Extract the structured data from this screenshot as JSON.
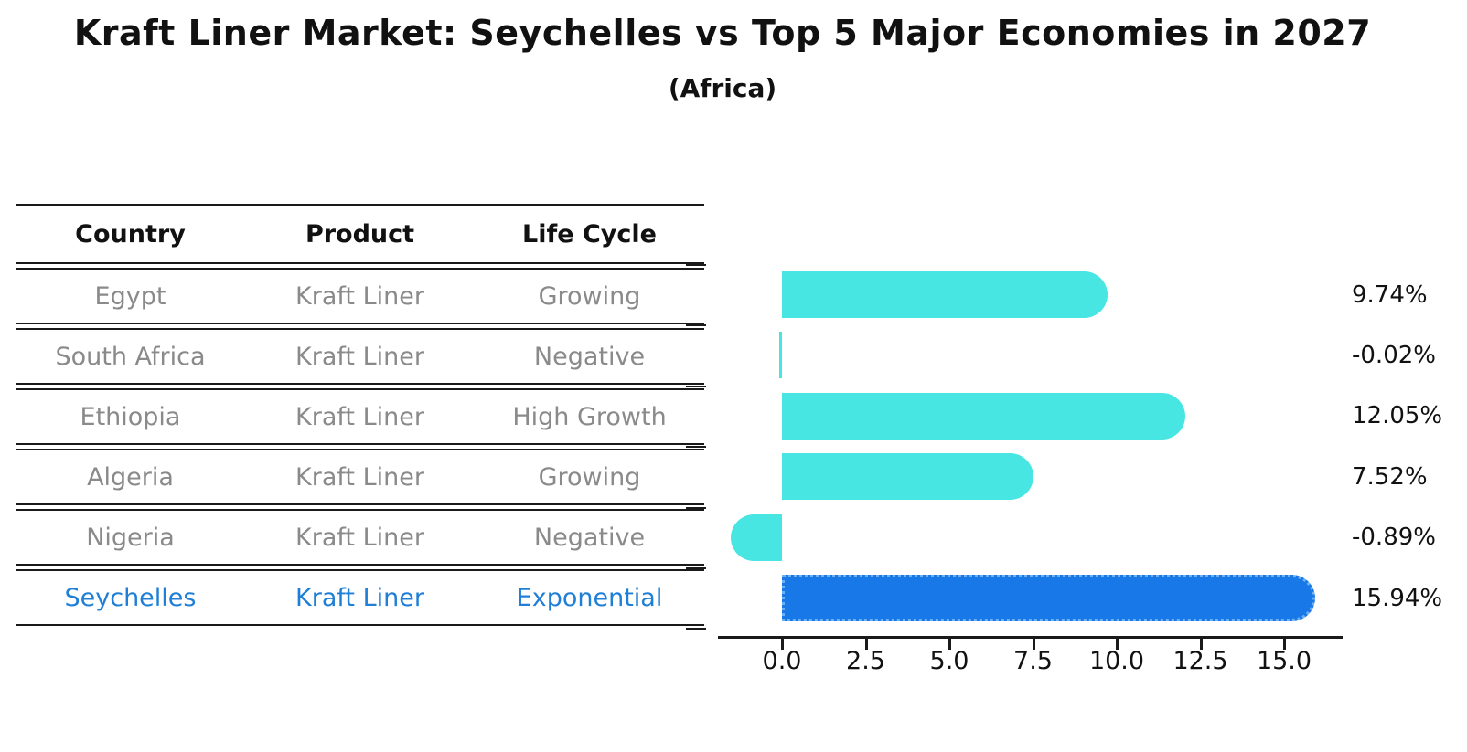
{
  "header": {
    "title": "Kraft Liner Market: Seychelles vs Top 5 Major Economies in 2027",
    "subtitle": "(Africa)"
  },
  "colors": {
    "bar": "#47e6e2",
    "highlight_bar": "#1878e8",
    "highlight_bar_edge": "#6db1f5",
    "highlight_text": "#1f7fd6",
    "table_text": "#8a8a8a",
    "header_text": "#111111",
    "line": "#1a1a1a"
  },
  "table": {
    "headers": [
      "Country",
      "Product",
      "Life Cycle"
    ],
    "rows": [
      {
        "country": "Egypt",
        "product": "Kraft Liner",
        "life_cycle": "Growing",
        "highlight": false
      },
      {
        "country": "South Africa",
        "product": "Kraft Liner",
        "life_cycle": "Negative",
        "highlight": false
      },
      {
        "country": "Ethiopia",
        "product": "Kraft Liner",
        "life_cycle": "High Growth",
        "highlight": false
      },
      {
        "country": "Algeria",
        "product": "Kraft Liner",
        "life_cycle": "Growing",
        "highlight": false
      },
      {
        "country": "Nigeria",
        "product": "Kraft Liner",
        "life_cycle": "Negative",
        "highlight": false
      },
      {
        "country": "Seychelles",
        "product": "Kraft Liner",
        "life_cycle": "Exponential",
        "highlight": true
      }
    ]
  },
  "chart_data": {
    "type": "bar",
    "orientation": "horizontal",
    "title": "Kraft Liner Market: Seychelles vs Top 5 Major Economies in 2027 (Africa)",
    "categories": [
      "Egypt",
      "South Africa",
      "Ethiopia",
      "Algeria",
      "Nigeria",
      "Seychelles"
    ],
    "values": [
      9.74,
      -0.02,
      12.05,
      7.52,
      -0.89,
      15.94
    ],
    "value_labels": [
      "9.74%",
      "-0.02%",
      "12.05%",
      "7.52%",
      "-0.89%",
      "15.94%"
    ],
    "unit": "%",
    "highlight_index": 5,
    "x_tick_labels": [
      "0.0",
      "2.5",
      "5.0",
      "7.5",
      "10.0",
      "12.5",
      "15.0"
    ],
    "x_tick_values": [
      0,
      2.5,
      5,
      7.5,
      10,
      12.5,
      15
    ],
    "xlim": [
      -1.9,
      16.8
    ],
    "grid": false,
    "legend": false
  }
}
